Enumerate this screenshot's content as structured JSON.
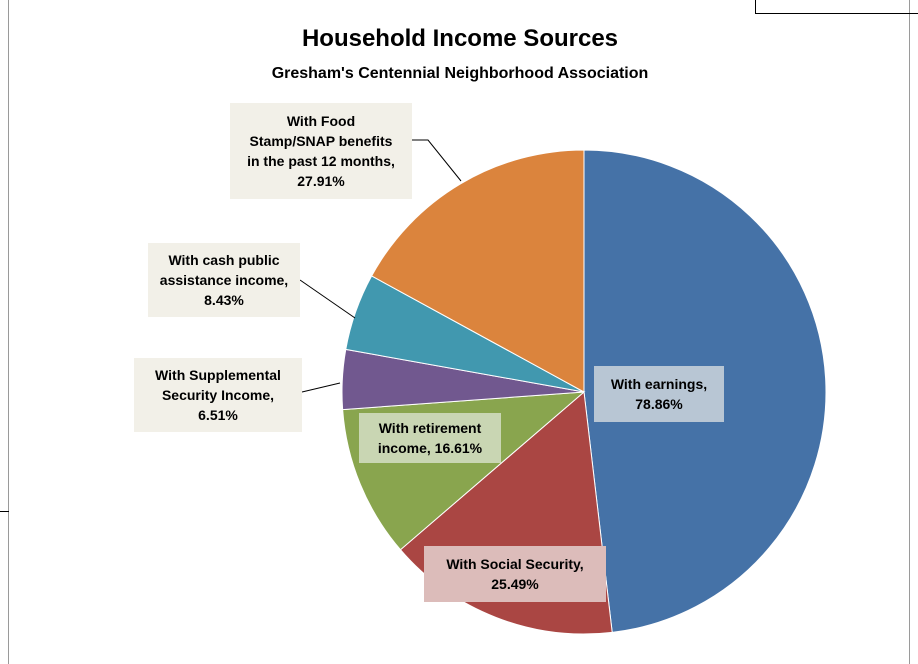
{
  "chart_data": {
    "type": "pie",
    "title": "Household Income Sources",
    "subtitle": "Gresham's Centennial Neighborhood Association",
    "slices": [
      {
        "name": "With earnings",
        "value": 78.86,
        "label_lines": [
          "With earnings,",
          "78.86%"
        ],
        "color": "#4572a7"
      },
      {
        "name": "With Social Security",
        "value": 25.49,
        "label_lines": [
          "With Social Security,",
          "25.49%"
        ],
        "color": "#aa4643"
      },
      {
        "name": "With retirement income",
        "value": 16.61,
        "label_lines": [
          "With retirement",
          "income, 16.61%"
        ],
        "color": "#89a54e"
      },
      {
        "name": "With Supplemental Security Income",
        "value": 6.51,
        "label_lines": [
          "With Supplemental",
          "Security Income,",
          "6.51%"
        ],
        "color": "#71588f"
      },
      {
        "name": "With cash public assistance income",
        "value": 8.43,
        "label_lines": [
          "With cash public",
          "assistance income,",
          "8.43%"
        ],
        "color": "#4198af"
      },
      {
        "name": "With Food Stamp/SNAP benefits in the past 12 months",
        "value": 27.91,
        "label_lines": [
          "With Food",
          "Stamp/SNAP benefits",
          "in the past 12 months,",
          "27.91%"
        ],
        "color": "#db843d"
      }
    ]
  }
}
